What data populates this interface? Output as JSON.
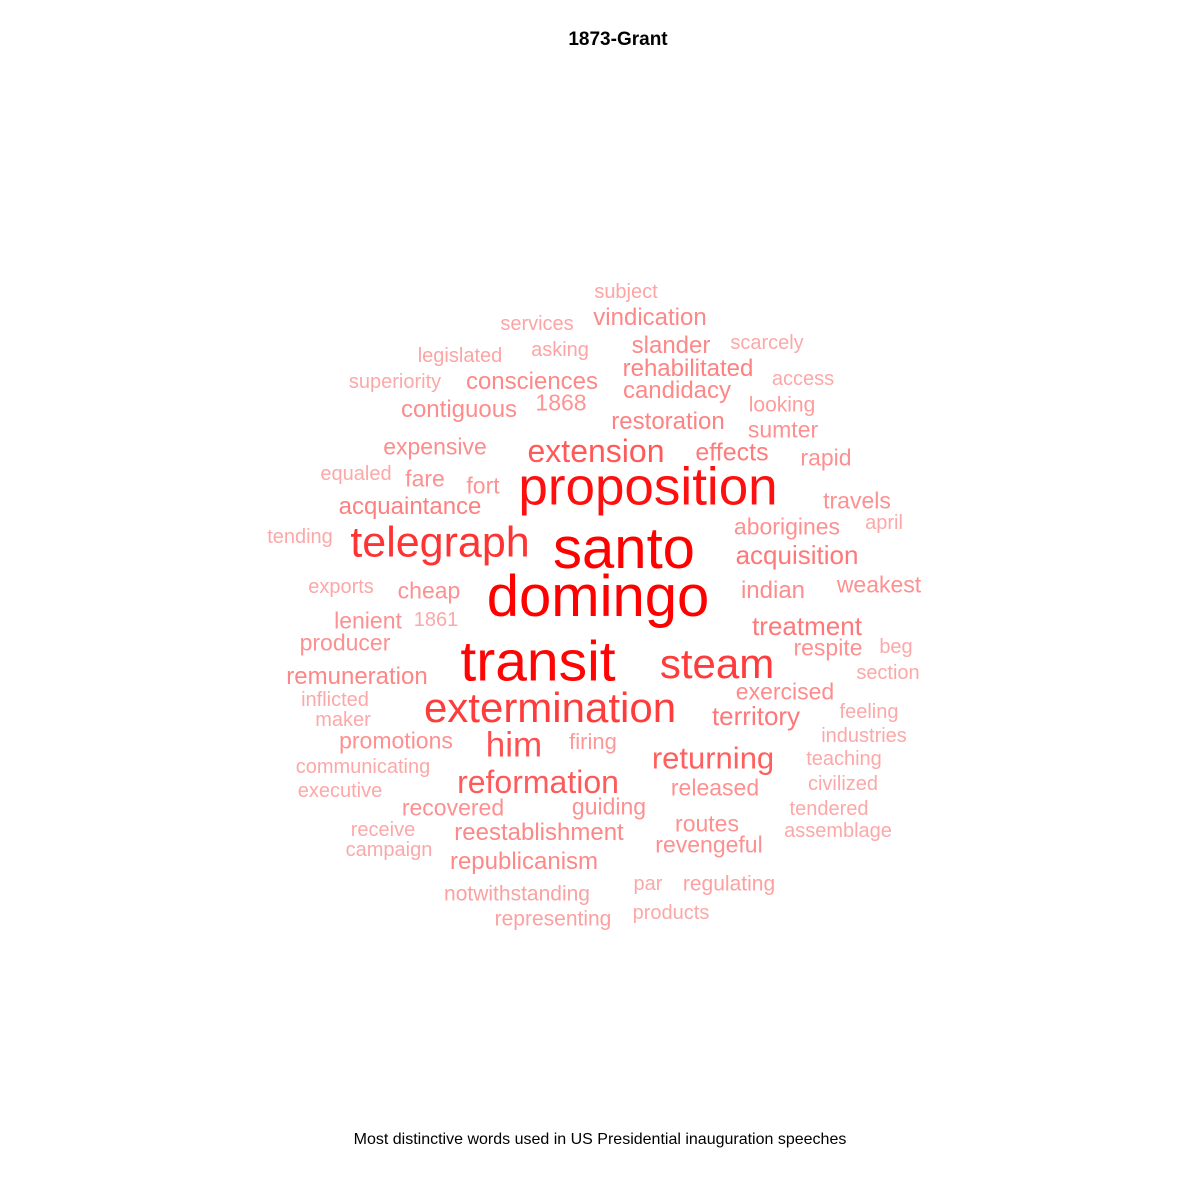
{
  "title": "1873-Grant",
  "caption": "Most distinctive words used in US Presidential inauguration speeches",
  "colors": {
    "strongest": "#ff0000",
    "weakest": "#fcc8c8"
  },
  "words": [
    {
      "text": "santo",
      "weight": 1.0
    },
    {
      "text": "domingo",
      "weight": 1.0
    },
    {
      "text": "transit",
      "weight": 0.98
    },
    {
      "text": "proposition",
      "weight": 0.92
    },
    {
      "text": "telegraph",
      "weight": 0.74
    },
    {
      "text": "extermination",
      "weight": 0.7
    },
    {
      "text": "steam",
      "weight": 0.7
    },
    {
      "text": "him",
      "weight": 0.6
    },
    {
      "text": "extension",
      "weight": 0.55
    },
    {
      "text": "reformation",
      "weight": 0.55
    },
    {
      "text": "returning",
      "weight": 0.52
    },
    {
      "text": "acquisition",
      "weight": 0.4
    },
    {
      "text": "treatment",
      "weight": 0.4
    },
    {
      "text": "territory",
      "weight": 0.4
    },
    {
      "text": "effects",
      "weight": 0.38
    },
    {
      "text": "acquaintance",
      "weight": 0.36
    },
    {
      "text": "restoration",
      "weight": 0.35
    },
    {
      "text": "rehabilitated",
      "weight": 0.35
    },
    {
      "text": "remuneration",
      "weight": 0.33
    },
    {
      "text": "reestablishment",
      "weight": 0.32
    },
    {
      "text": "republicanism",
      "weight": 0.32
    },
    {
      "text": "consciences",
      "weight": 0.32
    },
    {
      "text": "candidacy",
      "weight": 0.32
    },
    {
      "text": "slander",
      "weight": 0.32
    },
    {
      "text": "vindication",
      "weight": 0.32
    },
    {
      "text": "contiguous",
      "weight": 0.3
    },
    {
      "text": "expensive",
      "weight": 0.3
    },
    {
      "text": "exercised",
      "weight": 0.3
    },
    {
      "text": "indian",
      "weight": 0.3
    },
    {
      "text": "weakest",
      "weight": 0.28
    },
    {
      "text": "aborigines",
      "weight": 0.28
    },
    {
      "text": "travels",
      "weight": 0.28
    },
    {
      "text": "respite",
      "weight": 0.28
    },
    {
      "text": "promotions",
      "weight": 0.28
    },
    {
      "text": "recovered",
      "weight": 0.28
    },
    {
      "text": "released",
      "weight": 0.28
    },
    {
      "text": "revengeful",
      "weight": 0.28
    },
    {
      "text": "routes",
      "weight": 0.28
    },
    {
      "text": "guiding",
      "weight": 0.28
    },
    {
      "text": "sumter",
      "weight": 0.28
    },
    {
      "text": "rapid",
      "weight": 0.28
    },
    {
      "text": "cheap",
      "weight": 0.28
    },
    {
      "text": "lenient",
      "weight": 0.28
    },
    {
      "text": "producer",
      "weight": 0.28
    },
    {
      "text": "fare",
      "weight": 0.28
    },
    {
      "text": "fort",
      "weight": 0.26
    },
    {
      "text": "1868",
      "weight": 0.26
    },
    {
      "text": "firing",
      "weight": 0.24
    },
    {
      "text": "looking",
      "weight": 0.22
    },
    {
      "text": "notwithstanding",
      "weight": 0.2
    },
    {
      "text": "representing",
      "weight": 0.2
    },
    {
      "text": "regulating",
      "weight": 0.2
    },
    {
      "text": "asking",
      "weight": 0.18
    },
    {
      "text": "legislated",
      "weight": 0.18
    },
    {
      "text": "services",
      "weight": 0.18
    },
    {
      "text": "subject",
      "weight": 0.18
    },
    {
      "text": "scarcely",
      "weight": 0.16
    },
    {
      "text": "access",
      "weight": 0.16
    },
    {
      "text": "superiority",
      "weight": 0.16
    },
    {
      "text": "equaled",
      "weight": 0.16
    },
    {
      "text": "tending",
      "weight": 0.16
    },
    {
      "text": "exports",
      "weight": 0.16
    },
    {
      "text": "1861",
      "weight": 0.16
    },
    {
      "text": "inflicted",
      "weight": 0.16
    },
    {
      "text": "maker",
      "weight": 0.16
    },
    {
      "text": "communicating",
      "weight": 0.16
    },
    {
      "text": "executive",
      "weight": 0.16
    },
    {
      "text": "receive",
      "weight": 0.16
    },
    {
      "text": "campaign",
      "weight": 0.16
    },
    {
      "text": "par",
      "weight": 0.16
    },
    {
      "text": "products",
      "weight": 0.16
    },
    {
      "text": "assemblage",
      "weight": 0.16
    },
    {
      "text": "tendered",
      "weight": 0.16
    },
    {
      "text": "civilized",
      "weight": 0.16
    },
    {
      "text": "teaching",
      "weight": 0.16
    },
    {
      "text": "industries",
      "weight": 0.16
    },
    {
      "text": "feeling",
      "weight": 0.16
    },
    {
      "text": "section",
      "weight": 0.16
    },
    {
      "text": "beg",
      "weight": 0.16
    },
    {
      "text": "april",
      "weight": 0.16
    }
  ]
}
